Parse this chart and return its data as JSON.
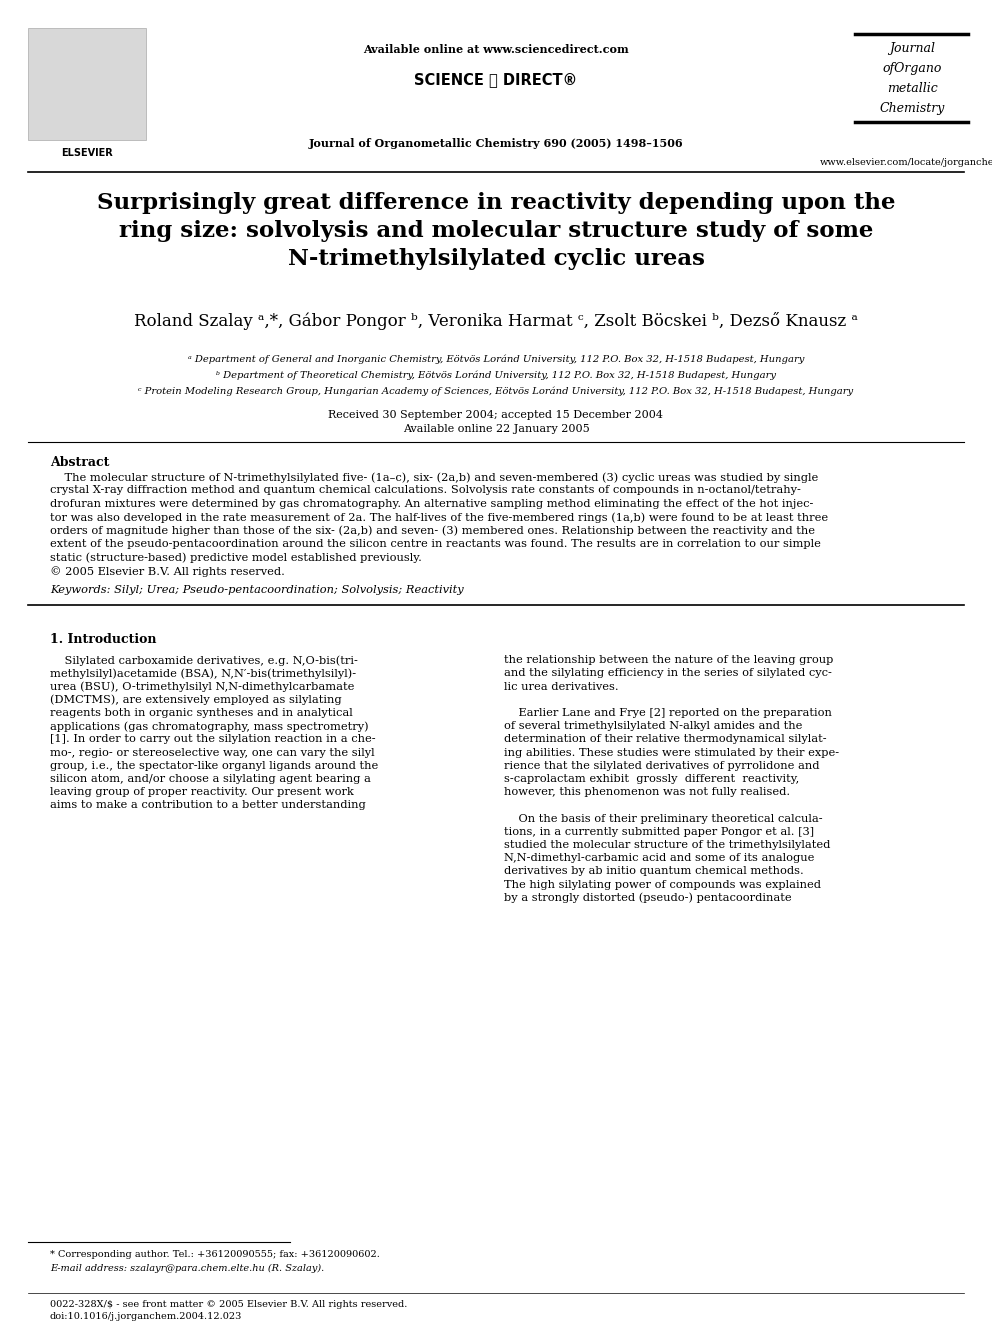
{
  "bg_color": "#ffffff",
  "header": {
    "available_online": "Available online at www.sciencedirect.com",
    "journal_line": "Journal of Organometallic Chemistry 690 (2005) 1498–1506",
    "website": "www.elsevier.com/locate/jorganchem",
    "journal_name_lines": [
      "Journal",
      "ofOrgano",
      "metallic",
      "Chemistry"
    ]
  },
  "title": "Surprisingly great difference in reactivity depending upon the\nring size: solvolysis and molecular structure study of some\nN-trimethylsilylated cyclic ureas",
  "authors": "Roland Szalay ᵃ,*, Gábor Pongor ᵇ, Veronika Harmat ᶜ, Zsolt Böcskei ᵇ, Dezső Knausz ᵃ",
  "affil_a": "ᵃ Department of General and Inorganic Chemistry, Eötvös Loránd University, 112 P.O. Box 32, H-1518 Budapest, Hungary",
  "affil_b": "ᵇ Department of Theoretical Chemistry, Eötvös Loránd University, 112 P.O. Box 32, H-1518 Budapest, Hungary",
  "affil_c": "ᶜ Protein Modeling Research Group, Hungarian Academy of Sciences, Eötvös Loránd University, 112 P.O. Box 32, H-1518 Budapest, Hungary",
  "received": "Received 30 September 2004; accepted 15 December 2004",
  "available": "Available online 22 January 2005",
  "abstract_label": "Abstract",
  "keywords": "Keywords: Silyl; Urea; Pseudo-pentacoordination; Solvolysis; Reactivity",
  "section1_title": "1. Introduction",
  "footnote_star": "* Corresponding author. Tel.: +36120090555; fax: +36120090602.",
  "footnote_email": "E-mail address: szalayr@para.chem.elte.hu (R. Szalay).",
  "footer_left": "0022-328X/$ - see front matter © 2005 Elsevier B.V. All rights reserved.",
  "footer_doi": "doi:10.1016/j.jorganchem.2004.12.023",
  "abs_lines": [
    "    The molecular structure of N-trimethylsilylated five- (1a–c), six- (2a,b) and seven-membered (3) cyclic ureas was studied by single",
    "crystal X-ray diffraction method and quantum chemical calculations. Solvolysis rate constants of compounds in n-octanol/tetrahy-",
    "drofuran mixtures were determined by gas chromatography. An alternative sampling method eliminating the effect of the hot injec-",
    "tor was also developed in the rate measurement of 2a. The half-lives of the five-membered rings (1a,b) were found to be at least three",
    "orders of magnitude higher than those of the six- (2a,b) and seven- (3) membered ones. Relationship between the reactivity and the",
    "extent of the pseudo-pentacoordination around the silicon centre in reactants was found. The results are in correlation to our simple",
    "static (structure-based) predictive model established previously.",
    "© 2005 Elsevier B.V. All rights reserved."
  ],
  "intro_left_lines": [
    "    Silylated carboxamide derivatives, e.g. N,O-bis(tri-",
    "methylsilyl)acetamide (BSA), N,N′-bis(trimethylsilyl)-",
    "urea (BSU), O-trimethylsilyl N,N-dimethylcarbamate",
    "(DMCTMS), are extensively employed as silylating",
    "reagents both in organic syntheses and in analytical",
    "applications (gas chromatography, mass spectrometry)",
    "[1]. In order to carry out the silylation reaction in a che-",
    "mo-, regio- or stereoselective way, one can vary the silyl",
    "group, i.e., the spectator-like organyl ligands around the",
    "silicon atom, and/or choose a silylating agent bearing a",
    "leaving group of proper reactivity. Our present work",
    "aims to make a contribution to a better understanding"
  ],
  "intro_right_lines": [
    "the relationship between the nature of the leaving group",
    "and the silylating efficiency in the series of silylated cyc-",
    "lic urea derivatives.",
    "",
    "    Earlier Lane and Frye [2] reported on the preparation",
    "of several trimethylsilylated N-alkyl amides and the",
    "determination of their relative thermodynamical silylat-",
    "ing abilities. These studies were stimulated by their expe-",
    "rience that the silylated derivatives of pyrrolidone and",
    "s-caprolactam exhibit  grossly  different  reactivity,",
    "however, this phenomenon was not fully realised.",
    "",
    "    On the basis of their preliminary theoretical calcula-",
    "tions, in a currently submitted paper Pongor et al. [3]",
    "studied the molecular structure of the trimethylsilylated",
    "N,N-dimethyl-carbamic acid and some of its analogue",
    "derivatives by ab initio quantum chemical methods.",
    "The high silylating power of compounds was explained",
    "by a strongly distorted (pseudo-) pentacoordinate"
  ]
}
